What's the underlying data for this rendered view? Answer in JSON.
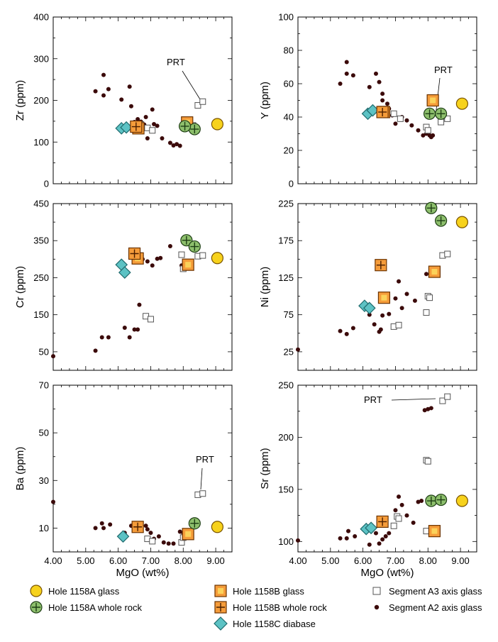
{
  "chart_data": [
    {
      "type": "scatter",
      "ylabel": "Zr (ppm)",
      "ylim": [
        0,
        400
      ],
      "yticks": [
        0,
        100,
        200,
        300,
        400
      ],
      "xlim": [
        4,
        9.5
      ],
      "annotation": "PRT",
      "series": {
        "h58a_glass": [
          [
            9.05,
            143
          ]
        ],
        "h58a_wr": [
          [
            8.35,
            131
          ],
          [
            8.05,
            138
          ]
        ],
        "h58b_glass": [
          [
            6.62,
            133
          ],
          [
            8.12,
            147
          ]
        ],
        "h58b_wr": [
          [
            6.55,
            137
          ]
        ],
        "h58c": [
          [
            6.1,
            133
          ],
          [
            6.25,
            135
          ]
        ],
        "a3": [
          [
            6.7,
            142
          ],
          [
            6.9,
            134
          ],
          [
            7.05,
            128
          ],
          [
            8.3,
            140
          ],
          [
            8.45,
            188
          ],
          [
            8.6,
            197
          ]
        ],
        "a2": [
          [
            5.3,
            222
          ],
          [
            5.55,
            261
          ],
          [
            5.55,
            212
          ],
          [
            5.7,
            227
          ],
          [
            6.1,
            202
          ],
          [
            6.35,
            233
          ],
          [
            6.4,
            186
          ],
          [
            6.5,
            148
          ],
          [
            6.6,
            155
          ],
          [
            6.7,
            149
          ],
          [
            6.8,
            142
          ],
          [
            6.85,
            160
          ],
          [
            6.9,
            109
          ],
          [
            7.05,
            178
          ],
          [
            7.1,
            143
          ],
          [
            7.2,
            139
          ],
          [
            7.35,
            109
          ],
          [
            7.6,
            98
          ],
          [
            7.7,
            92
          ],
          [
            7.8,
            95
          ],
          [
            7.9,
            91
          ],
          [
            7.95,
            140
          ]
        ]
      }
    },
    {
      "type": "scatter",
      "ylabel": "Y (ppm)",
      "ylim": [
        0,
        100
      ],
      "yticks": [
        0,
        20,
        40,
        60,
        80,
        100
      ],
      "xlim": [
        4,
        9.5
      ],
      "annotation": "PRT",
      "series": {
        "h58a_glass": [
          [
            9.05,
            48
          ]
        ],
        "h58a_wr": [
          [
            8.05,
            42
          ],
          [
            8.4,
            42
          ]
        ],
        "h58b_glass": [
          [
            6.65,
            43
          ],
          [
            8.15,
            50
          ]
        ],
        "h58b_wr": [
          [
            6.6,
            43
          ]
        ],
        "h58c": [
          [
            6.15,
            42
          ],
          [
            6.3,
            44
          ]
        ],
        "a3": [
          [
            6.95,
            42
          ],
          [
            7.15,
            39
          ],
          [
            7.95,
            34
          ],
          [
            8.0,
            32
          ],
          [
            8.4,
            37
          ],
          [
            8.6,
            39
          ]
        ],
        "a2": [
          [
            5.3,
            60
          ],
          [
            5.5,
            73
          ],
          [
            5.5,
            66
          ],
          [
            5.7,
            65
          ],
          [
            6.2,
            58
          ],
          [
            6.4,
            66
          ],
          [
            6.5,
            61
          ],
          [
            6.6,
            54
          ],
          [
            6.6,
            50
          ],
          [
            6.75,
            48
          ],
          [
            6.8,
            45
          ],
          [
            6.9,
            41
          ],
          [
            7.0,
            36
          ],
          [
            7.2,
            40
          ],
          [
            7.35,
            38
          ],
          [
            7.5,
            35
          ],
          [
            7.7,
            32
          ],
          [
            7.85,
            29
          ],
          [
            7.95,
            30
          ],
          [
            8.05,
            29
          ],
          [
            8.1,
            28
          ],
          [
            8.15,
            29
          ]
        ]
      }
    },
    {
      "type": "scatter",
      "ylabel": "Cr (ppm)",
      "ylim": [
        0,
        450
      ],
      "yticks": [
        50,
        150,
        250,
        350,
        450
      ],
      "xlim": [
        4,
        9.5
      ],
      "series": {
        "h58a_glass": [
          [
            9.05,
            303
          ]
        ],
        "h58a_wr": [
          [
            8.1,
            351
          ],
          [
            8.35,
            334
          ]
        ],
        "h58b_glass": [
          [
            6.6,
            302
          ],
          [
            8.15,
            285
          ]
        ],
        "h58b_wr": [
          [
            6.5,
            315
          ]
        ],
        "h58c": [
          [
            6.1,
            285
          ],
          [
            6.2,
            264
          ]
        ],
        "a3": [
          [
            6.85,
            146
          ],
          [
            7.0,
            138
          ],
          [
            7.95,
            312
          ],
          [
            8.0,
            274
          ],
          [
            8.45,
            308
          ],
          [
            8.6,
            310
          ]
        ],
        "a2": [
          [
            4.0,
            38
          ],
          [
            5.3,
            53
          ],
          [
            5.5,
            89
          ],
          [
            5.7,
            89
          ],
          [
            6.2,
            115
          ],
          [
            6.35,
            89
          ],
          [
            6.5,
            110
          ],
          [
            6.6,
            110
          ],
          [
            6.65,
            177
          ],
          [
            6.75,
            300
          ],
          [
            6.9,
            294
          ],
          [
            7.05,
            283
          ],
          [
            7.2,
            301
          ],
          [
            7.3,
            303
          ],
          [
            7.6,
            335
          ],
          [
            7.95,
            283
          ]
        ]
      }
    },
    {
      "type": "scatter",
      "ylabel": "Ni (ppm)",
      "ylim": [
        0,
        225
      ],
      "yticks": [
        25,
        75,
        125,
        175,
        225
      ],
      "xlim": [
        4,
        9.5
      ],
      "series": {
        "h58a_glass": [
          [
            9.05,
            200
          ]
        ],
        "h58a_wr": [
          [
            8.1,
            219
          ],
          [
            8.4,
            202
          ]
        ],
        "h58b_glass": [
          [
            6.65,
            98
          ],
          [
            8.2,
            133
          ]
        ],
        "h58b_wr": [
          [
            6.55,
            142
          ]
        ],
        "h58c": [
          [
            6.05,
            87
          ],
          [
            6.2,
            84
          ]
        ],
        "a3": [
          [
            6.95,
            59
          ],
          [
            7.1,
            61
          ],
          [
            7.95,
            78
          ],
          [
            8.0,
            100
          ],
          [
            8.05,
            98
          ],
          [
            8.45,
            155
          ],
          [
            8.6,
            157
          ]
        ],
        "a2": [
          [
            4.0,
            28
          ],
          [
            5.3,
            53
          ],
          [
            5.5,
            49
          ],
          [
            5.7,
            57
          ],
          [
            6.1,
            85
          ],
          [
            6.2,
            75
          ],
          [
            6.35,
            62
          ],
          [
            6.5,
            52
          ],
          [
            6.55,
            55
          ],
          [
            6.6,
            74
          ],
          [
            6.8,
            76
          ],
          [
            7.0,
            97
          ],
          [
            7.1,
            120
          ],
          [
            7.2,
            84
          ],
          [
            7.35,
            103
          ],
          [
            7.6,
            94
          ],
          [
            7.95,
            130
          ]
        ]
      }
    },
    {
      "type": "scatter",
      "ylabel": "Ba (ppm)",
      "xlabel": "MgO (wt%)",
      "ylim": [
        0,
        70
      ],
      "yticks": [
        10,
        30,
        50,
        70
      ],
      "xlim": [
        4,
        9.5
      ],
      "xticks": [
        4,
        5,
        6,
        7,
        8,
        9
      ],
      "xticklabels": [
        "4.00",
        "5.00",
        "6.00",
        "7.00",
        "8.00",
        "9.00"
      ],
      "annotation": "PRT",
      "series": {
        "h58a_glass": [
          [
            9.05,
            10.5
          ]
        ],
        "h58a_wr": [
          [
            8.35,
            12.0
          ]
        ],
        "h58b_glass": [
          [
            8.15,
            7.5
          ]
        ],
        "h58b_wr": [
          [
            6.6,
            10.5
          ]
        ],
        "h58c": [
          [
            6.15,
            6.5
          ]
        ],
        "a3": [
          [
            6.9,
            5.5
          ],
          [
            7.05,
            4.5
          ],
          [
            7.95,
            4.0
          ],
          [
            8.0,
            6.0
          ],
          [
            8.45,
            24.0
          ],
          [
            8.6,
            24.5
          ]
        ],
        "a2": [
          [
            4.0,
            21.0
          ],
          [
            5.3,
            10.0
          ],
          [
            5.5,
            12.0
          ],
          [
            5.55,
            10.0
          ],
          [
            5.75,
            11.5
          ],
          [
            6.2,
            8.0
          ],
          [
            6.4,
            11.0
          ],
          [
            6.5,
            9.0
          ],
          [
            6.6,
            11.5
          ],
          [
            6.85,
            11.0
          ],
          [
            6.9,
            9.5
          ],
          [
            7.0,
            8.0
          ],
          [
            7.1,
            5.5
          ],
          [
            7.25,
            6.5
          ],
          [
            7.4,
            4.0
          ],
          [
            7.55,
            3.5
          ],
          [
            7.7,
            3.5
          ],
          [
            7.9,
            8.5
          ],
          [
            8.0,
            8.0
          ]
        ]
      }
    },
    {
      "type": "scatter",
      "ylabel": "Sr (ppm)",
      "xlabel": "MgO (wt%)",
      "ylim": [
        90,
        250
      ],
      "yticks": [
        100,
        150,
        200,
        250
      ],
      "xlim": [
        4,
        9.5
      ],
      "xticks": [
        4,
        5,
        6,
        7,
        8,
        9
      ],
      "xticklabels": [
        "4.00",
        "5.00",
        "6.00",
        "7.00",
        "8.00",
        "9.00"
      ],
      "annotation": "PRT",
      "series": {
        "h58a_glass": [
          [
            9.05,
            139
          ]
        ],
        "h58a_wr": [
          [
            8.1,
            139
          ],
          [
            8.4,
            140
          ]
        ],
        "h58b_glass": [
          [
            8.2,
            110
          ]
        ],
        "h58b_wr": [
          [
            6.6,
            119
          ]
        ],
        "h58c": [
          [
            6.1,
            112
          ],
          [
            6.25,
            113
          ]
        ],
        "a3": [
          [
            6.95,
            115
          ],
          [
            7.05,
            124
          ],
          [
            7.1,
            122
          ],
          [
            7.95,
            110
          ],
          [
            7.95,
            178
          ],
          [
            8.0,
            177
          ],
          [
            8.45,
            235
          ],
          [
            8.6,
            239
          ]
        ],
        "a2": [
          [
            4.0,
            101
          ],
          [
            5.3,
            103
          ],
          [
            5.5,
            103
          ],
          [
            5.55,
            110
          ],
          [
            5.75,
            105
          ],
          [
            6.2,
            97
          ],
          [
            6.4,
            108
          ],
          [
            6.5,
            98
          ],
          [
            6.6,
            102
          ],
          [
            6.7,
            105
          ],
          [
            6.8,
            108
          ],
          [
            7.0,
            130
          ],
          [
            7.1,
            143
          ],
          [
            7.2,
            135
          ],
          [
            7.35,
            125
          ],
          [
            7.55,
            118
          ],
          [
            7.7,
            138
          ],
          [
            7.8,
            139
          ],
          [
            7.9,
            226
          ],
          [
            8.0,
            227
          ],
          [
            8.1,
            228
          ]
        ]
      }
    }
  ],
  "legend": {
    "h58a_glass": "Hole 1158A glass",
    "h58a_wr": "Hole 1158A whole rock",
    "h58b_glass": "Hole 1158B glass",
    "h58b_wr": "Hole 1158B whole rock",
    "h58c": "Hole 1158C diabase",
    "a3": "Segment A3 axis glass",
    "a2": "Segment A2 axis glass"
  },
  "colors": {
    "yellow_fill": "#f7d21c",
    "yellow_edge": "#b5860a",
    "green_fill": "#8dbf6c",
    "green_edge": "#2f5e20",
    "orange_fill": "#f59c3a",
    "orange_edge": "#a64f0a",
    "teal_fill": "#5cc2c4",
    "teal_edge": "#1f6a6d",
    "dot": "#3b0a0a"
  }
}
